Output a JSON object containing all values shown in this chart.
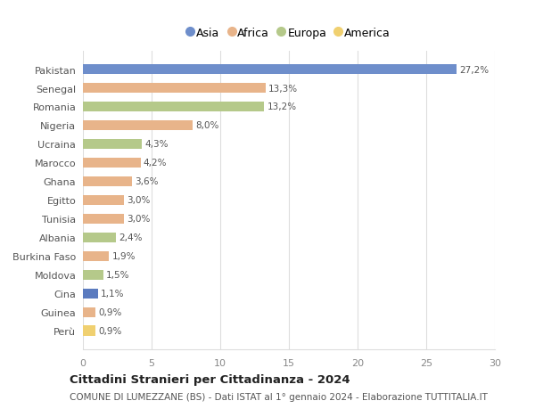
{
  "categories": [
    "Pakistan",
    "Senegal",
    "Romania",
    "Nigeria",
    "Ucraina",
    "Marocco",
    "Ghana",
    "Egitto",
    "Tunisia",
    "Albania",
    "Burkina Faso",
    "Moldova",
    "Cina",
    "Guinea",
    "Perù"
  ],
  "values": [
    27.2,
    13.3,
    13.2,
    8.0,
    4.3,
    4.2,
    3.6,
    3.0,
    3.0,
    2.4,
    1.9,
    1.5,
    1.1,
    0.9,
    0.9
  ],
  "labels": [
    "27,2%",
    "13,3%",
    "13,2%",
    "8,0%",
    "4,3%",
    "4,2%",
    "3,6%",
    "3,0%",
    "3,0%",
    "2,4%",
    "1,9%",
    "1,5%",
    "1,1%",
    "0,9%",
    "0,9%"
  ],
  "colors": [
    "#6e8ecb",
    "#e8b48a",
    "#b5c98a",
    "#e8b48a",
    "#b5c98a",
    "#e8b48a",
    "#e8b48a",
    "#e8b48a",
    "#e8b48a",
    "#b5c98a",
    "#e8b48a",
    "#b5c98a",
    "#5b7bbf",
    "#e8b48a",
    "#f0d070"
  ],
  "legend_labels": [
    "Asia",
    "Africa",
    "Europa",
    "America"
  ],
  "legend_colors": [
    "#6e8ecb",
    "#e8b48a",
    "#b5c98a",
    "#f0d070"
  ],
  "xlim": [
    0,
    30
  ],
  "xticks": [
    0,
    5,
    10,
    15,
    20,
    25,
    30
  ],
  "title": "Cittadini Stranieri per Cittadinanza - 2024",
  "subtitle": "COMUNE DI LUMEZZANE (BS) - Dati ISTAT al 1° gennaio 2024 - Elaborazione TUTTITALIA.IT",
  "grid_color": "#dddddd",
  "bg_color": "#ffffff",
  "bar_height": 0.55,
  "label_fontsize": 7.5,
  "ytick_fontsize": 8.0,
  "xtick_fontsize": 8.0,
  "legend_fontsize": 9.0,
  "title_fontsize": 9.5,
  "subtitle_fontsize": 7.5
}
